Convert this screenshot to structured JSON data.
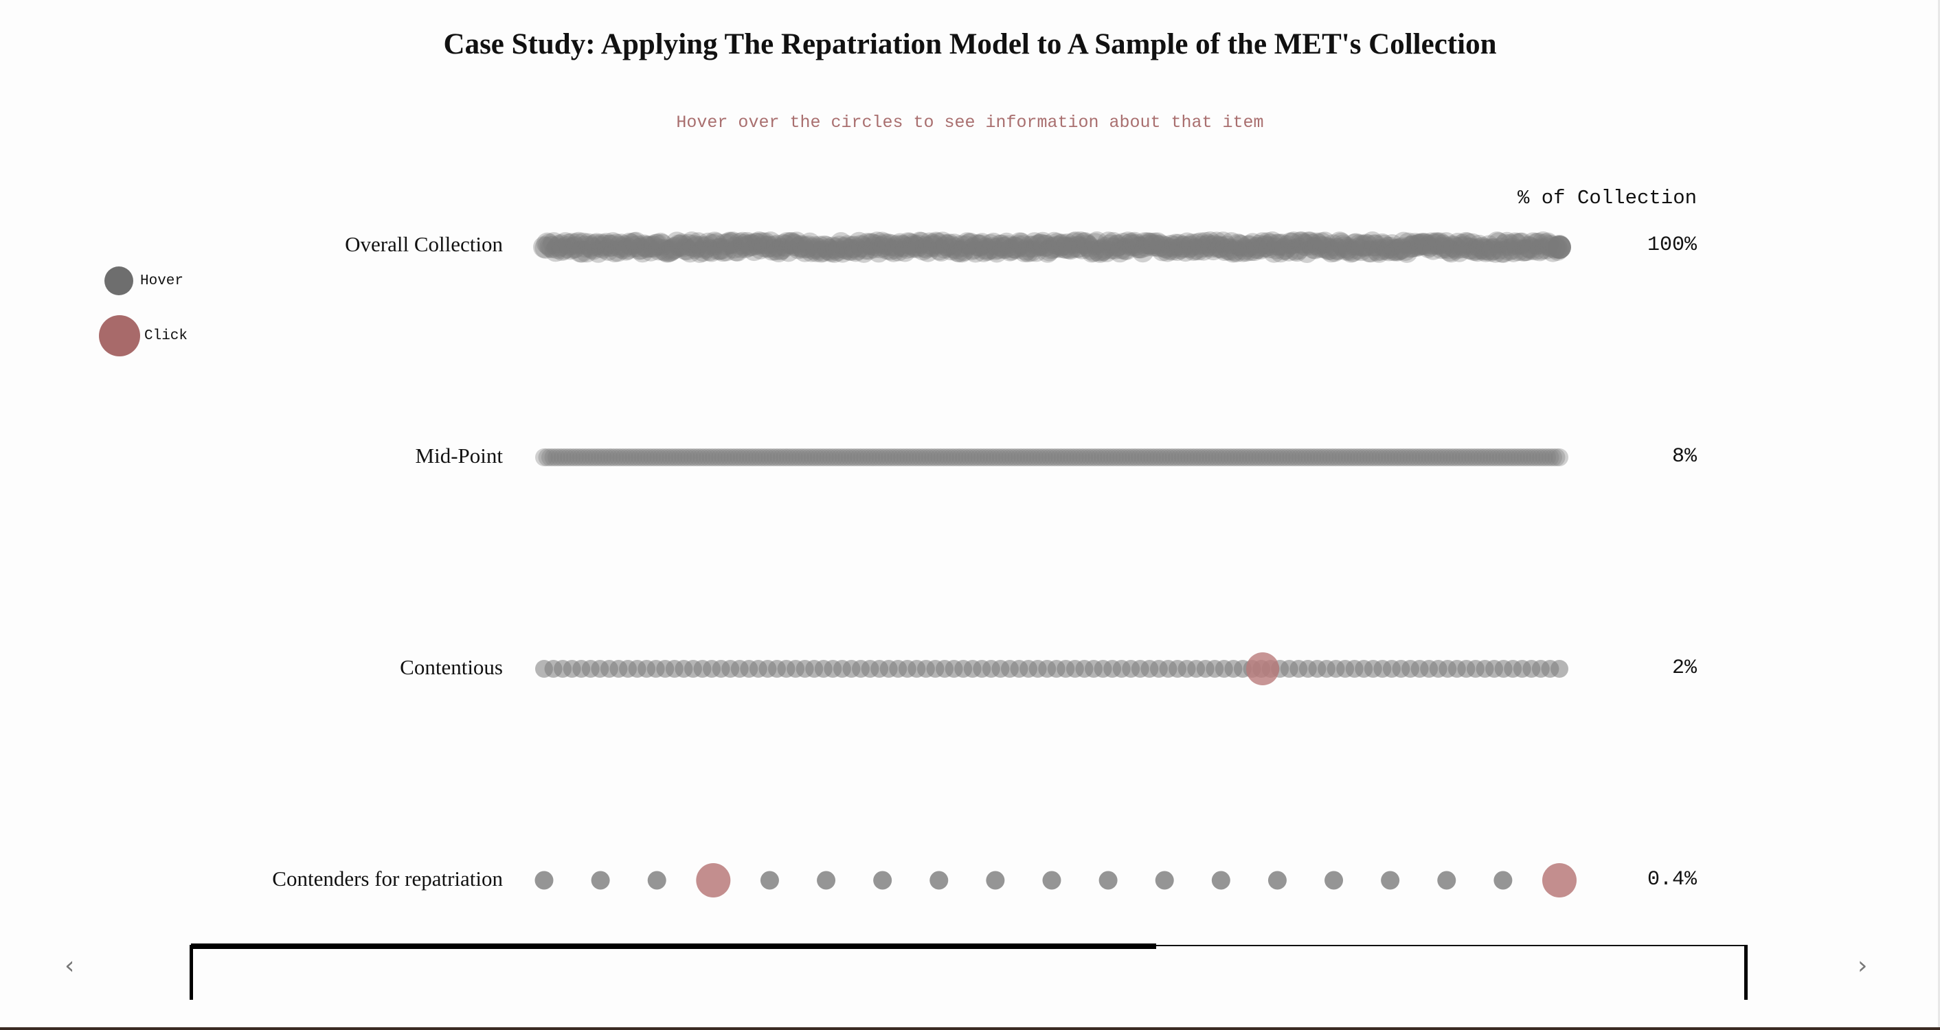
{
  "title": "Case Study: Applying The Repatriation Model to A Sample of the MET's Collection",
  "subtitle": "Hover over the circles to see information about that item",
  "column_header": "% of Collection",
  "legend": [
    {
      "label": "Hover",
      "color": "#6e6e6e"
    },
    {
      "label": "Click",
      "color": "#a86a6a"
    }
  ],
  "rows": [
    {
      "label": "Overall Collection",
      "percent": "100%"
    },
    {
      "label": "Mid-Point",
      "percent": "8%"
    },
    {
      "label": "Contentious",
      "percent": "2%"
    },
    {
      "label": "Contenders for repatriation",
      "percent": "0.4%"
    }
  ],
  "colors": {
    "dot": "#7a7a7a",
    "highlight": "#b97a7a"
  },
  "progress": {
    "fraction": 0.62
  },
  "nav": {
    "prev": "‹",
    "next": "›"
  }
}
